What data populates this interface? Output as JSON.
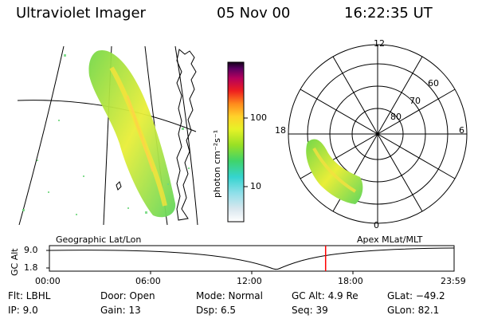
{
  "header": {
    "instrument": "Ultraviolet Imager",
    "date": "05 Nov 00",
    "time": "16:22:35 UT"
  },
  "colorbar": {
    "label": "photon cm⁻²s⁻¹",
    "ticks": [
      "100",
      "10"
    ],
    "scale": "log"
  },
  "polar": {
    "mlt_labels": [
      "12",
      "18",
      "6",
      "0"
    ],
    "lat_labels": [
      "60",
      "70",
      "80"
    ]
  },
  "timeline": {
    "left_caption": "Geographic Lat/Lon",
    "right_caption": "Apex MLat/MLT",
    "y_axis_label": "GC Alt",
    "y_ticks": [
      "9.0",
      "1.8"
    ],
    "x_ticks": [
      "00:00",
      "06:00",
      "12:00",
      "18:00",
      "23:59"
    ],
    "current_time_hours": 16.38,
    "marker_color": "#ff0000"
  },
  "info": {
    "flt": "Flt: LBHL",
    "ip": "IP:  9.0",
    "door": "Door: Open",
    "gain": "Gain: 13",
    "mode": "Mode: Normal",
    "dsp": "Dsp:     6.5",
    "gc_alt": "GC Alt: 4.9 Re",
    "seq": "Seq: 39",
    "glat": "GLat: −49.2",
    "glon": "GLon:  82.1"
  }
}
